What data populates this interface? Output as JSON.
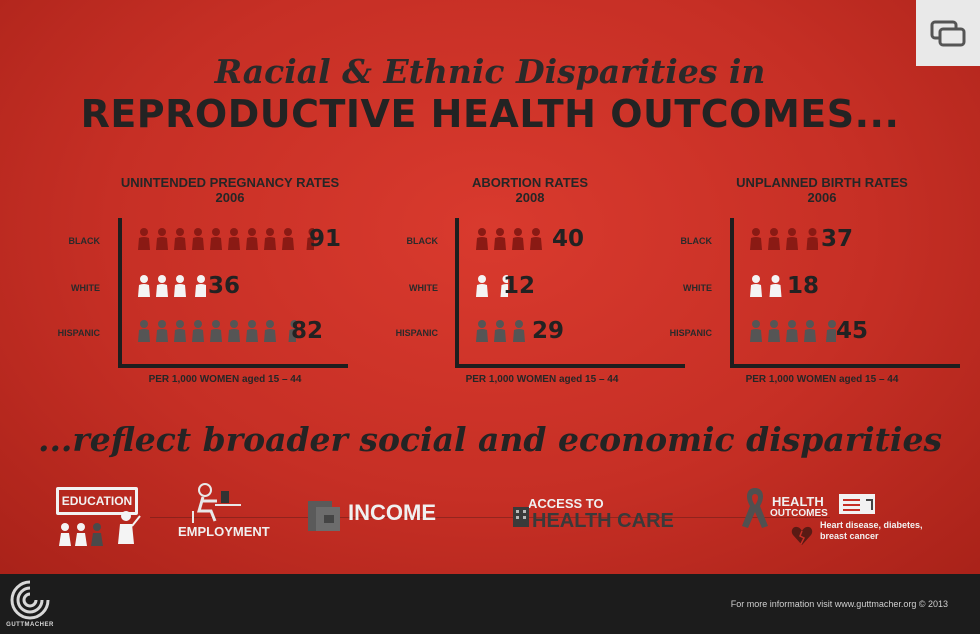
{
  "header": {
    "title_line1": "Racial & Ethnic Disparities in",
    "title_line2": "REPRODUCTIVE HEALTH OUTCOMES..."
  },
  "subtitle": "...reflect broader social and economic disparities",
  "colors": {
    "background": "#c62f25",
    "black_icon": "#8a1a14",
    "white_icon": "#f4f4f4",
    "hispanic_icon": "#555555"
  },
  "chart_data": [
    {
      "type": "bar",
      "title": "UNINTENDED PREGNANCY RATES",
      "year": "2006",
      "categories": [
        "BLACK",
        "WHITE",
        "HISPANIC"
      ],
      "values": [
        91,
        36,
        82
      ],
      "units": "PER 1,000 WOMEN aged 15 – 44"
    },
    {
      "type": "bar",
      "title": "ABORTION RATES",
      "year": "2008",
      "categories": [
        "BLACK",
        "WHITE",
        "HISPANIC"
      ],
      "values": [
        40,
        12,
        29
      ],
      "units": "PER 1,000 WOMEN aged 15 – 44"
    },
    {
      "type": "bar",
      "title": "UNPLANNED BIRTH RATES",
      "year": "2006",
      "categories": [
        "BLACK",
        "WHITE",
        "HISPANIC"
      ],
      "values": [
        37,
        18,
        45
      ],
      "units": "PER 1,000 WOMEN aged 15 – 44"
    }
  ],
  "factors": {
    "education": "EDUCATION",
    "employment": "EMPLOYMENT",
    "income": "INCOME",
    "access_line1": "ACCESS TO",
    "access_line2": "HEALTH CARE",
    "health_line1": "HEALTH",
    "health_line2": "OUTCOMES",
    "health_note": "Heart disease, diabetes, breast cancer"
  },
  "footer": {
    "logo_text": "GUTTMACHER",
    "info": "For more information visit www.guttmacher.org © 2013"
  },
  "icons": [
    "expand-icon",
    "person-icon",
    "teacher-icon",
    "desk-worker-icon",
    "wallet-icon",
    "hospital-icon",
    "ribbon-icon",
    "broken-heart-icon",
    "guttmacher-logo-icon"
  ]
}
